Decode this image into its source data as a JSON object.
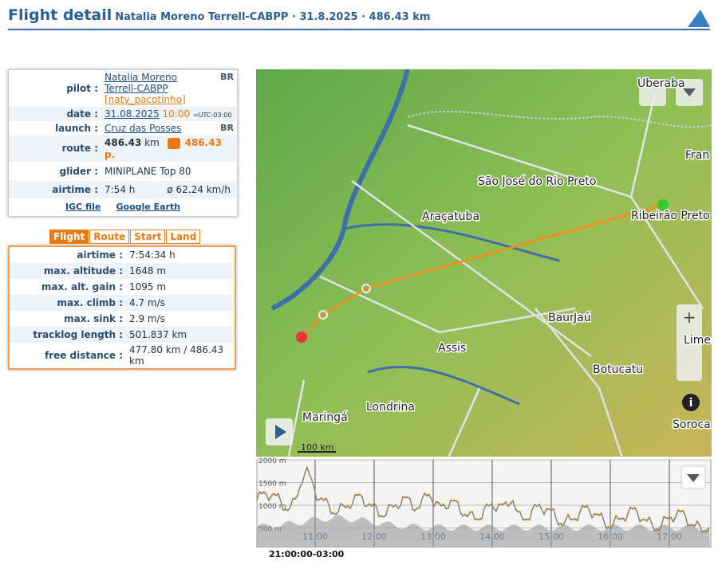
{
  "header": {
    "title": "Flight detail",
    "subtitle": "Natalia Moreno Terrell-CABPP · 31.8.2025 · 486.43 km"
  },
  "info": {
    "pilot": {
      "label": "pilot :",
      "name": "Natalia Moreno Terrell-CABPP",
      "nick": "[naty_pacotinho]",
      "country": "BR"
    },
    "date": {
      "label": "date :",
      "date": "31.08.2025",
      "time": "10:00",
      "tz": "=UTC-03:00"
    },
    "launch": {
      "label": "launch :",
      "name": "Cruz das Posses",
      "country": "BR"
    },
    "route": {
      "label": "route :",
      "distance": "486.43",
      "unit": "km",
      "points": "486.43 p."
    },
    "glider": {
      "label": "glider :",
      "name": "MINIPLANE Top 80"
    },
    "airtime": {
      "label": "airtime :",
      "time": "7:54 h",
      "speed": "ø 62.24 km/h"
    },
    "links": [
      "IGC file",
      "Google Earth"
    ]
  },
  "tabs": [
    "Flight",
    "Route",
    "Start",
    "Land"
  ],
  "stats": [
    [
      "airtime :",
      "7:54:34 h"
    ],
    [
      "max. altitude :",
      "1648 m"
    ],
    [
      "max. alt. gain :",
      "1095 m"
    ],
    [
      "max. climb :",
      "4.7 m/s"
    ],
    [
      "max. sink :",
      "2.9 m/s"
    ],
    [
      "tracklog length :",
      "501.837 km"
    ],
    [
      "free distance :",
      "477.80 km / 486.43 km"
    ]
  ],
  "map": {
    "labels": [
      "Uberaba",
      "Fran",
      "São José do Rio Preto",
      "Araçatuba",
      "Ribeirão Preto",
      "Bauru",
      "Jaú",
      "Assis",
      "Botucatu",
      "Lime",
      "Londrina",
      "Maringá",
      "Soroca"
    ],
    "scale": "100 km"
  },
  "profile": {
    "yticks": [
      "2000 m",
      "1500 m",
      "1000 m",
      "500 m"
    ],
    "xticks": [
      "11:00",
      "12:00",
      "13:00",
      "14:00",
      "15:00",
      "16:00",
      "17:00"
    ],
    "time": "21:00:00-03:00"
  }
}
